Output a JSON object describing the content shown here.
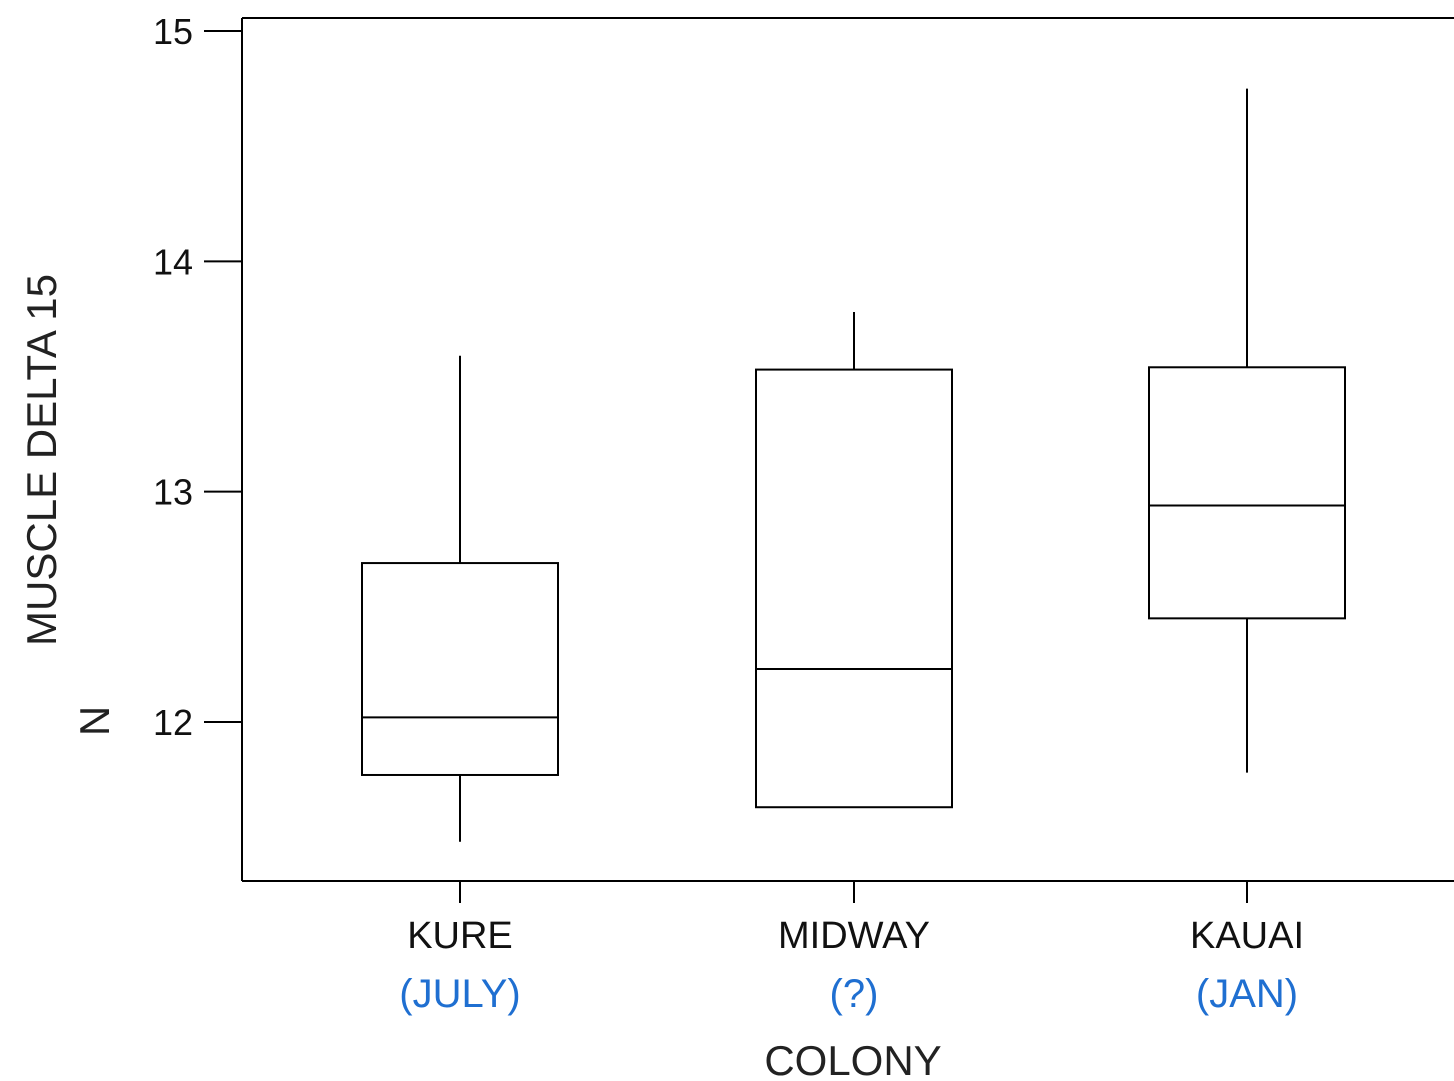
{
  "chart_data": {
    "type": "box",
    "ylabel_lines": [
      "MUSCLE DELTA 15",
      "N"
    ],
    "xlabel": "COLONY",
    "yticks": [
      12,
      13,
      14,
      15
    ],
    "ylim": [
      11.35,
      15.05
    ],
    "grid": false,
    "categories": [
      "KURE",
      "MIDWAY",
      "KAUAI"
    ],
    "subtitles": [
      "(JULY)",
      "(?)",
      "(JAN)"
    ],
    "subtitle_color": "#1f6fd1",
    "series": [
      {
        "category": "KURE",
        "whisker_low": 11.48,
        "q1": 11.77,
        "median": 12.02,
        "q3": 12.69,
        "whisker_high": 13.59
      },
      {
        "category": "MIDWAY",
        "whisker_low": 11.63,
        "q1": 11.63,
        "median": 12.23,
        "q3": 13.53,
        "whisker_high": 13.78
      },
      {
        "category": "KAUAI",
        "whisker_low": 11.78,
        "q1": 12.45,
        "median": 12.94,
        "q3": 13.54,
        "whisker_high": 14.75
      }
    ]
  }
}
